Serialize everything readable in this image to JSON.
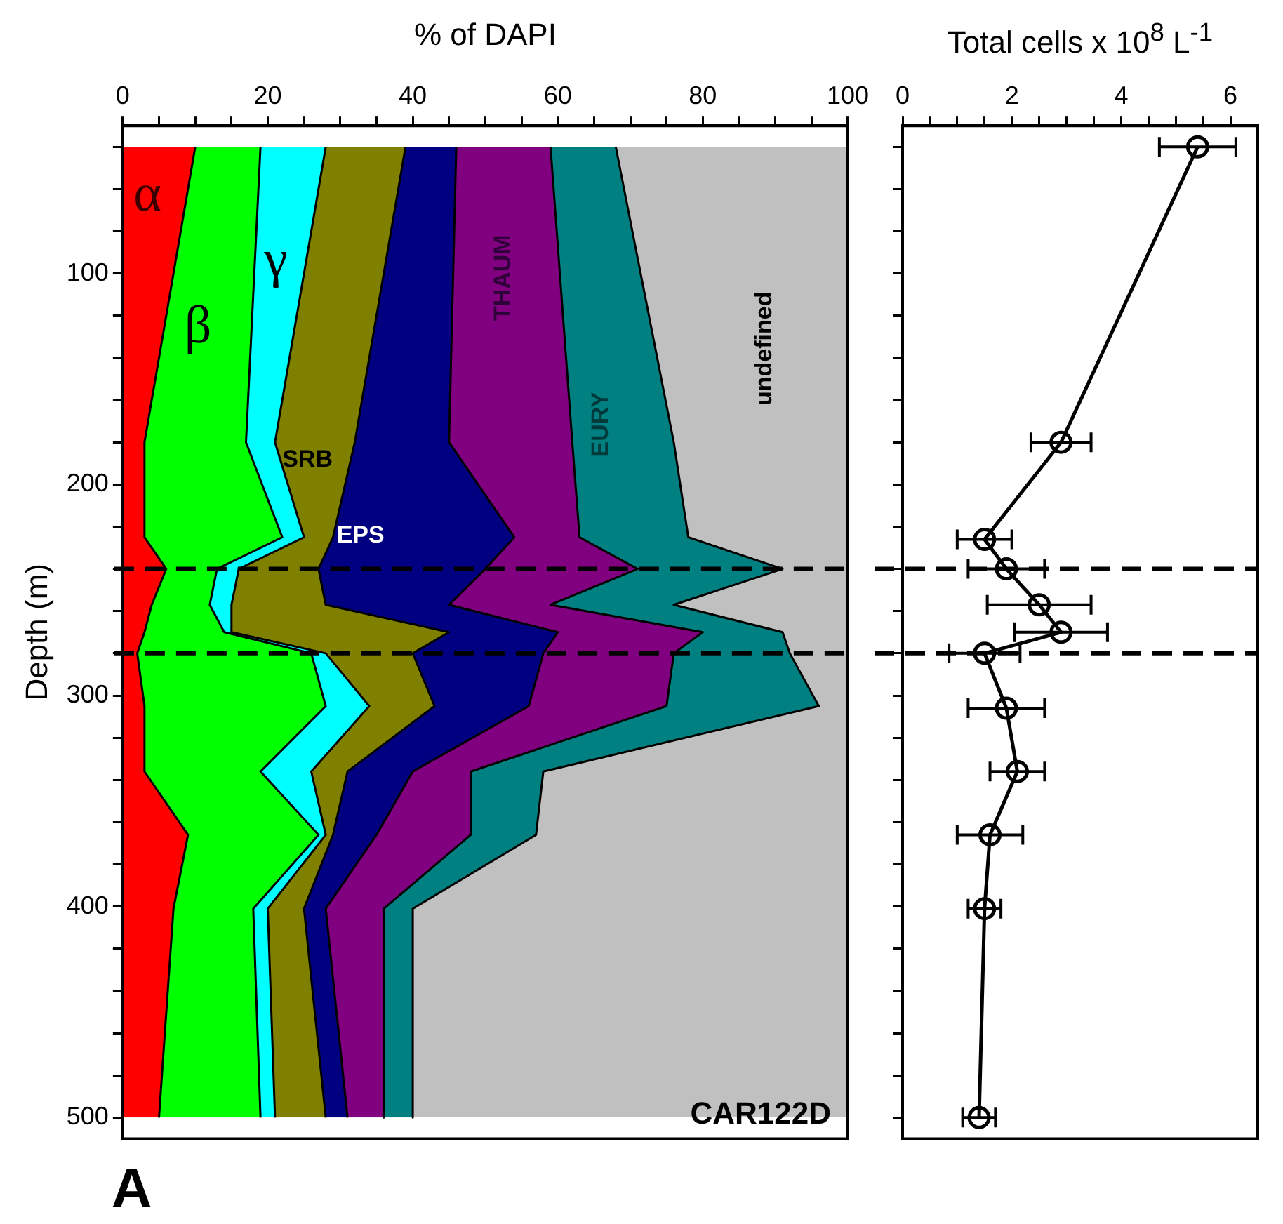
{
  "chart_data": [
    {
      "type": "area",
      "orientation": "horizontal",
      "stacked": true,
      "xlabel": "% of DAPI",
      "ylabel": "Depth (m)",
      "x": [
        40,
        180,
        225,
        240,
        257,
        270,
        280,
        305,
        336,
        366,
        401,
        500
      ],
      "series": [
        {
          "name": "α",
          "color": "#ff0000",
          "values": [
            10,
            3,
            3,
            6,
            4,
            3,
            2,
            3,
            3,
            9,
            7,
            5
          ]
        },
        {
          "name": "β",
          "color": "#00ff00",
          "values": [
            9,
            14,
            19,
            7,
            8,
            11,
            24,
            25,
            16,
            18,
            11,
            14
          ]
        },
        {
          "name": "γ",
          "color": "#00ffff",
          "values": [
            9,
            4,
            3,
            3,
            3,
            1,
            2,
            6,
            7,
            1,
            2,
            2
          ]
        },
        {
          "name": "SRB",
          "color": "#808000",
          "values": [
            11,
            11,
            4,
            11,
            13,
            30,
            12,
            9,
            5,
            1,
            5,
            7
          ]
        },
        {
          "name": "EPS",
          "color": "#000080",
          "values": [
            7,
            13,
            25,
            23,
            17,
            15,
            18,
            13,
            9,
            6,
            3,
            3
          ]
        },
        {
          "name": "THAUM",
          "color": "#800080",
          "values": [
            13,
            17,
            9,
            21,
            14,
            20,
            18,
            19,
            8,
            13,
            8,
            5
          ]
        },
        {
          "name": "EURY",
          "color": "#008080",
          "values": [
            9,
            14,
            15,
            20,
            17,
            11,
            16,
            21,
            10,
            9,
            4,
            4
          ]
        },
        {
          "name": "undefined",
          "color": "#c0c0c0",
          "values": [
            32,
            24,
            22,
            9,
            24,
            9,
            8,
            4,
            42,
            43,
            60,
            60
          ]
        }
      ],
      "xlim": [
        0,
        100
      ],
      "xticks": [
        0,
        {
          "value": 5,
          "label": null
        },
        {
          "value": 10,
          "label": null
        },
        {
          "value": 15,
          "label": null
        },
        20,
        {
          "value": 25,
          "label": null
        },
        {
          "value": 30,
          "label": null
        },
        {
          "value": 35,
          "label": null
        },
        40,
        {
          "value": 45,
          "label": null
        },
        {
          "value": 50,
          "label": null
        },
        {
          "value": 55,
          "label": null
        },
        60,
        {
          "value": 65,
          "label": null
        },
        {
          "value": 70,
          "label": null
        },
        {
          "value": 75,
          "label": null
        },
        80,
        {
          "value": 85,
          "label": null
        },
        {
          "value": 90,
          "label": null
        },
        {
          "value": 95,
          "label": null
        },
        100
      ],
      "ylim": [
        510,
        30
      ],
      "yticks": [
        {
          "value": 40,
          "label": null
        },
        {
          "value": 60,
          "label": null
        },
        {
          "value": 80,
          "label": null
        },
        100,
        {
          "value": 120,
          "label": null
        },
        {
          "value": 140,
          "label": null
        },
        {
          "value": 160,
          "label": null
        },
        {
          "value": 180,
          "label": null
        },
        200,
        {
          "value": 220,
          "label": null
        },
        {
          "value": 240,
          "label": null
        },
        {
          "value": 260,
          "label": null
        },
        {
          "value": 280,
          "label": null
        },
        300,
        {
          "value": 320,
          "label": null
        },
        {
          "value": 340,
          "label": null
        },
        {
          "value": 360,
          "label": null
        },
        {
          "value": 380,
          "label": null
        },
        400,
        {
          "value": 420,
          "label": null
        },
        {
          "value": 440,
          "label": null
        },
        {
          "value": 460,
          "label": null
        },
        {
          "value": 480,
          "label": null
        },
        500
      ],
      "ref_lines": [
        {
          "axis": "y",
          "value": 240,
          "line_style": "dashed"
        },
        {
          "axis": "y",
          "value": 280,
          "line_style": "dashed"
        }
      ],
      "annotations": [
        "CAR122D",
        "A"
      ],
      "legend": false
    },
    {
      "type": "line",
      "orientation": "horizontal",
      "xlabel": "Total cells x 10$^{8}$ L$^{-1}$",
      "x": [
        40,
        180,
        226,
        240,
        257,
        270,
        280,
        306,
        336,
        366,
        401,
        500
      ],
      "series": [
        {
          "color": "#000000",
          "values": [
            5.4,
            2.9,
            1.5,
            1.9,
            2.5,
            2.9,
            1.5,
            1.9,
            2.1,
            1.6,
            1.5,
            1.4
          ],
          "errors": [
            0.7,
            0.55,
            0.5,
            0.7,
            0.95,
            0.85,
            0.65,
            0.7,
            0.5,
            0.6,
            0.3,
            0.3
          ]
        }
      ],
      "xlim": [
        0,
        6.5
      ],
      "xticks": [
        0,
        {
          "value": 0.5,
          "label": null
        },
        {
          "value": 1,
          "label": null
        },
        {
          "value": 1.5,
          "label": null
        },
        2,
        {
          "value": 2.5,
          "label": null
        },
        {
          "value": 3,
          "label": null
        },
        {
          "value": 3.5,
          "label": null
        },
        4,
        {
          "value": 4.5,
          "label": null
        },
        {
          "value": 5,
          "label": null
        },
        {
          "value": 5.5,
          "label": null
        },
        6
      ],
      "ylim": [
        510,
        30
      ],
      "yticks": [
        {
          "value": 40,
          "label": null
        },
        {
          "value": 60,
          "label": null
        },
        {
          "value": 80,
          "label": null
        },
        {
          "value": 100,
          "label": null
        },
        {
          "value": 120,
          "label": null
        },
        {
          "value": 140,
          "label": null
        },
        {
          "value": 160,
          "label": null
        },
        {
          "value": 180,
          "label": null
        },
        {
          "value": 200,
          "label": null
        },
        {
          "value": 220,
          "label": null
        },
        {
          "value": 240,
          "label": null
        },
        {
          "value": 260,
          "label": null
        },
        {
          "value": 280,
          "label": null
        },
        {
          "value": 300,
          "label": null
        },
        {
          "value": 320,
          "label": null
        },
        {
          "value": 340,
          "label": null
        },
        {
          "value": 360,
          "label": null
        },
        {
          "value": 380,
          "label": null
        },
        {
          "value": 400,
          "label": null
        },
        {
          "value": 420,
          "label": null
        },
        {
          "value": 440,
          "label": null
        },
        {
          "value": 460,
          "label": null
        },
        {
          "value": 480,
          "label": null
        },
        {
          "value": 500,
          "label": null
        }
      ],
      "ref_lines": [
        {
          "axis": "y",
          "value": 240,
          "line_style": "dashed"
        },
        {
          "axis": "y",
          "value": 280,
          "line_style": "dashed"
        }
      ],
      "tick_labels": "x",
      "marker": "circle",
      "line_style": "solid",
      "legend": false
    }
  ]
}
